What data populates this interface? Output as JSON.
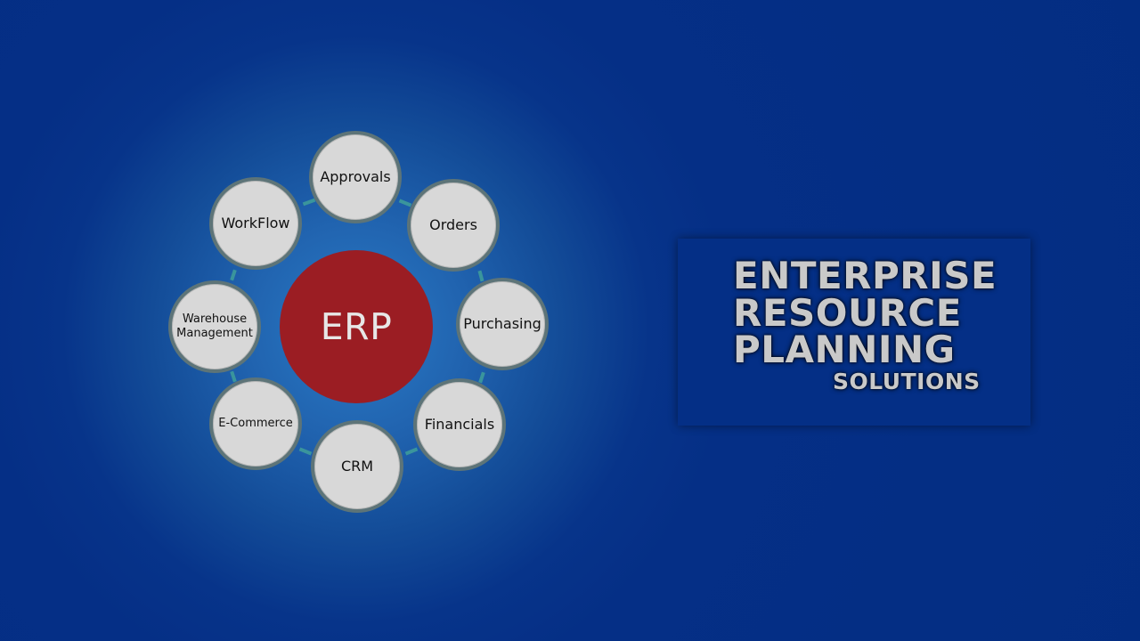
{
  "diagram": {
    "center": "ERP",
    "nodes": {
      "approvals": "Approvals",
      "orders": "Orders",
      "purchasing": "Purchasing",
      "financials": "Financials",
      "crm": "CRM",
      "ecommerce": "E-Commerce",
      "warehouse_line1": "Warehouse",
      "warehouse_line2": "Management",
      "workflow": "WorkFlow"
    }
  },
  "title": {
    "line1": "ENTERPRISE",
    "line2": "RESOURCE",
    "line3": "PLANNING",
    "line4": "SOLUTIONS"
  },
  "colors": {
    "background": "#032d82",
    "center_circle": "#9b1d23",
    "node_fill": "#d8d8d8",
    "connector": "#3f9f9a",
    "title_box": "#042f86"
  }
}
